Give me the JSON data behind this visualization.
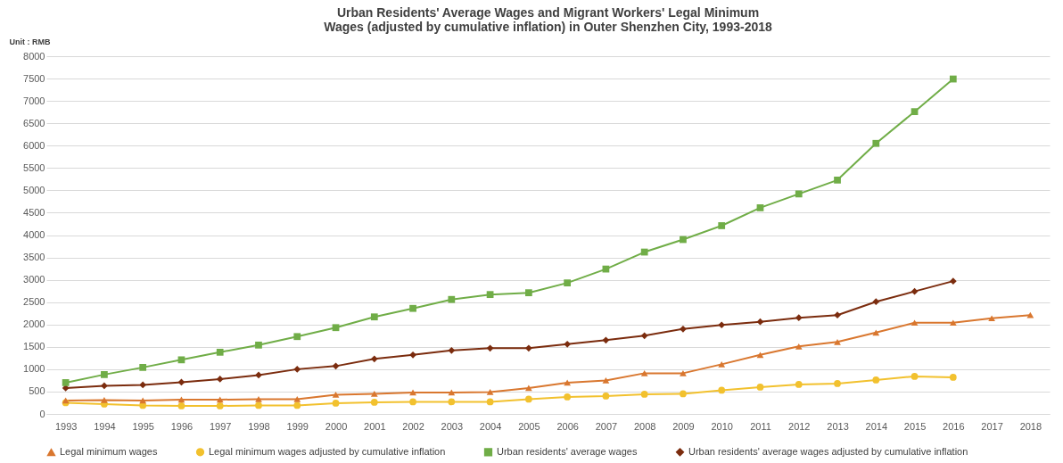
{
  "chart_data": {
    "type": "line",
    "title": [
      "Urban Residents' Average Wages and Migrant Workers' Legal Minimum",
      "Wages (adjusted by cumulative inflation) in Outer Shenzhen City, 1993-2018"
    ],
    "ylabel": "Unit : RMB",
    "categories": [
      "1993",
      "1994",
      "1995",
      "1996",
      "1997",
      "1998",
      "1999",
      "2000",
      "2001",
      "2002",
      "2003",
      "2004",
      "2005",
      "2006",
      "2007",
      "2008",
      "2009",
      "2010",
      "2011",
      "2012",
      "2013",
      "2014",
      "2015",
      "2016",
      "2017",
      "2018"
    ],
    "series": [
      {
        "name": "Legal minimum wages",
        "color": "#d9772f",
        "marker": "triangle",
        "values": [
          300,
          310,
          300,
          320,
          320,
          330,
          330,
          430,
          450,
          480,
          480,
          490,
          580,
          700,
          750,
          910,
          910,
          1110,
          1320,
          1510,
          1610,
          1820,
          2040,
          2040,
          2140,
          2210
        ]
      },
      {
        "name": "Legal minimum wages adjusted by cumulative inflation",
        "color": "#f2c12e",
        "marker": "circle",
        "values": [
          250,
          220,
          190,
          180,
          180,
          190,
          190,
          240,
          260,
          270,
          270,
          270,
          330,
          380,
          400,
          440,
          450,
          530,
          600,
          660,
          680,
          760,
          840,
          820,
          null,
          null
        ]
      },
      {
        "name": "Urban residents' average wages",
        "color": "#70ad47",
        "marker": "square",
        "values": [
          700,
          880,
          1040,
          1210,
          1380,
          1540,
          1730,
          1930,
          2170,
          2360,
          2560,
          2670,
          2710,
          2930,
          3240,
          3620,
          3900,
          4210,
          4610,
          4920,
          5230,
          6050,
          6760,
          7490,
          null,
          null
        ]
      },
      {
        "name": "Urban residents' average wages adjusted by cumulative inflation",
        "color": "#7b2c0e",
        "marker": "diamond",
        "values": [
          580,
          630,
          650,
          710,
          780,
          870,
          1000,
          1070,
          1230,
          1320,
          1420,
          1470,
          1470,
          1560,
          1650,
          1750,
          1900,
          1990,
          2060,
          2150,
          2210,
          2510,
          2740,
          2970,
          null,
          null
        ]
      }
    ],
    "ylim": [
      0,
      8000
    ],
    "yticks": [
      0,
      500,
      1000,
      1500,
      2000,
      2500,
      3000,
      3500,
      4000,
      4500,
      5000,
      5500,
      6000,
      6500,
      7000,
      7500,
      8000
    ],
    "grid": "y",
    "legend": "bottom",
    "line_style": "solid"
  }
}
